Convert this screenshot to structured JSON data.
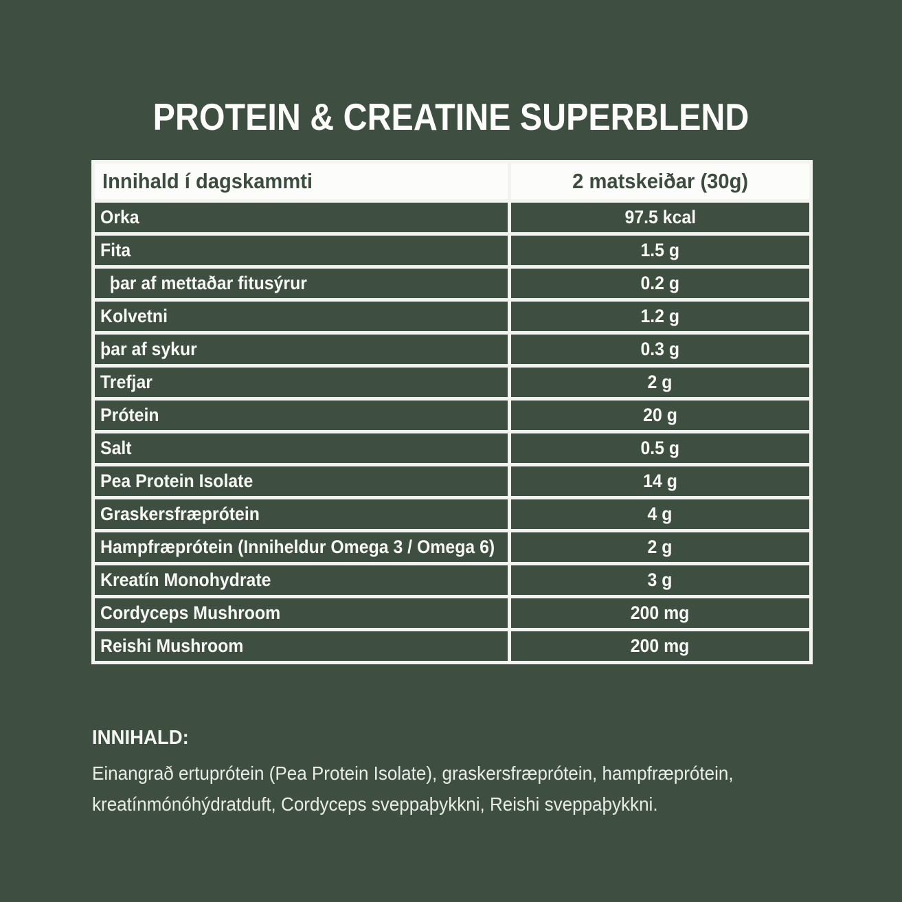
{
  "title": "PROTEIN & CREATINE SUPERBLEND",
  "table": {
    "header": {
      "label": "Innihald í dagskammti",
      "value": "2 matskeiðar (30g)"
    },
    "rows": [
      {
        "label": "Orka",
        "value": "97.5 kcal"
      },
      {
        "label": "Fita",
        "value": "1.5 g"
      },
      {
        "label": "  þar af mettaðar fitusýrur",
        "value": "0.2 g"
      },
      {
        "label": "Kolvetni",
        "value": "1.2 g"
      },
      {
        "label": "þar af sykur",
        "value": "0.3 g"
      },
      {
        "label": "Trefjar",
        "value": "2 g"
      },
      {
        "label": "Prótein",
        "value": "20 g"
      },
      {
        "label": "Salt",
        "value": "0.5 g"
      },
      {
        "label": "Pea Protein Isolate",
        "value": "14 g"
      },
      {
        "label": "Graskersfræprótein",
        "value": "4 g"
      },
      {
        "label": "Hampfræprótein (Inniheldur Omega 3 / Omega 6)",
        "value": "2 g"
      },
      {
        "label": "Kreatín Monohydrate",
        "value": "3 g"
      },
      {
        "label": "Cordyceps Mushroom",
        "value": "200 mg"
      },
      {
        "label": "Reishi Mushroom",
        "value": "200 mg"
      }
    ]
  },
  "footer": {
    "heading": "INNIHALD:",
    "body_lines": [
      "Einangrað ertuprótein (Pea Protein Isolate), graskersfræprótein, hampfræprótein,",
      "kreatínmónóhýdratduft, Cordyceps sveppaþykkni, Reishi sveppaþykkni."
    ]
  },
  "colors": {
    "background": "#3e4f42",
    "table_border": "#f2f4ef",
    "header_bg": "#fcfdfa",
    "header_text": "#3c4c3f",
    "row_bg": "#3e4f42",
    "row_text": "#f7f8f4",
    "title_text": "#fcfdfa",
    "footer_text": "#e9ece5"
  }
}
